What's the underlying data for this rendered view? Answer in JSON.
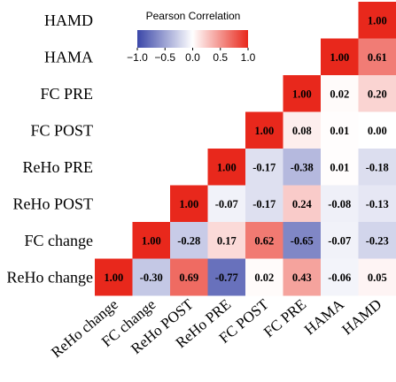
{
  "chart_data": {
    "type": "heatmap",
    "variables": [
      "ReHo change",
      "FC change",
      "ReHo POST",
      "ReHo PRE",
      "FC POST",
      "FC PRE",
      "HAMA",
      "HAMD"
    ],
    "rows_top_to_bottom": [
      "HAMD",
      "HAMA",
      "FC PRE",
      "FC POST",
      "ReHo PRE",
      "ReHo POST",
      "FC change",
      "ReHo change"
    ],
    "matrix_rows_top_to_bottom": [
      [
        null,
        null,
        null,
        null,
        null,
        null,
        null,
        1.0
      ],
      [
        null,
        null,
        null,
        null,
        null,
        null,
        1.0,
        0.61
      ],
      [
        null,
        null,
        null,
        null,
        null,
        1.0,
        0.02,
        0.2
      ],
      [
        null,
        null,
        null,
        null,
        1.0,
        0.08,
        0.01,
        0.0
      ],
      [
        null,
        null,
        null,
        1.0,
        -0.17,
        -0.38,
        0.01,
        -0.18
      ],
      [
        null,
        null,
        1.0,
        -0.07,
        -0.17,
        0.24,
        -0.08,
        -0.13
      ],
      [
        null,
        1.0,
        -0.28,
        0.17,
        0.62,
        -0.65,
        -0.07,
        -0.23
      ],
      [
        1.0,
        -0.3,
        0.69,
        -0.77,
        0.02,
        0.43,
        -0.06,
        0.05
      ]
    ],
    "value_labels_rows_top_to_bottom": [
      [
        "",
        "",
        "",
        "",
        "",
        "",
        "",
        "1.00"
      ],
      [
        "",
        "",
        "",
        "",
        "",
        "",
        "1.00",
        "0.61"
      ],
      [
        "",
        "",
        "",
        "",
        "",
        "1.00",
        "0.02",
        "0.20"
      ],
      [
        "",
        "",
        "",
        "",
        "1.00",
        "0.08",
        "0.01",
        "0.00"
      ],
      [
        "",
        "",
        "",
        "1.00",
        "-0.17",
        "-0.38",
        "0.01",
        "-0.18"
      ],
      [
        "",
        "",
        "1.00",
        "-0.07",
        "-0.17",
        "0.24",
        "-0.08",
        "-0.13"
      ],
      [
        "",
        "1.00",
        "-0.28",
        "0.17",
        "0.62",
        "-0.65",
        "-0.07",
        "-0.23"
      ],
      [
        "1.00",
        "-0.30",
        "0.69",
        "-0.77",
        "0.02",
        "0.43",
        "-0.06",
        "0.05"
      ]
    ],
    "legend": {
      "title": "Pearson Correlation",
      "ticks": [
        "−1.0",
        "−0.5",
        "0.0",
        "0.5",
        "1.0"
      ],
      "range": [
        -1,
        1
      ],
      "placement": "top-center"
    },
    "colors": {
      "negative": "#3b47a8",
      "zero": "#ffffff",
      "positive": "#e8281c"
    },
    "grid": false
  }
}
